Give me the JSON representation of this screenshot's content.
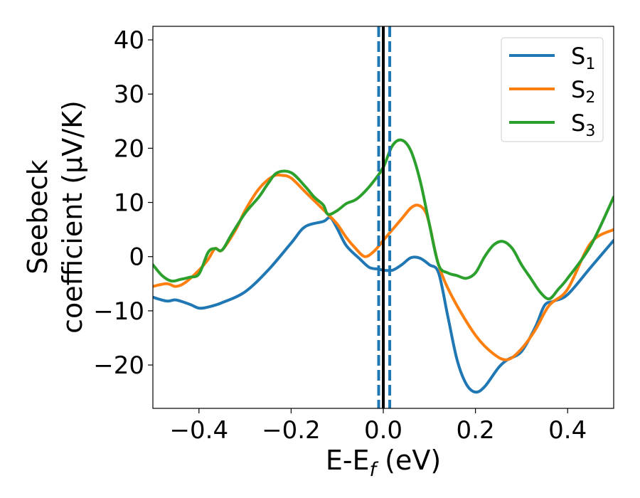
{
  "chart_data": {
    "type": "line",
    "xlabel": {
      "main": "E-E",
      "sub": "f",
      "tail": " (eV)"
    },
    "ylabel": {
      "line1": "Seebeck",
      "line2": "coefficient  (μV/K)"
    },
    "xlim": [
      -0.5,
      0.5
    ],
    "ylim": [
      -28,
      42.5
    ],
    "xticks": [
      -0.4,
      -0.2,
      0.0,
      0.2,
      0.4
    ],
    "xtick_labels": [
      "−0.4",
      "−0.2",
      "0.0",
      "0.2",
      "0.4"
    ],
    "yticks": [
      -20,
      -10,
      0,
      10,
      20,
      30,
      40
    ],
    "ytick_labels": [
      "−20",
      "−10",
      "0",
      "10",
      "20",
      "30",
      "40"
    ],
    "grid": false,
    "legend_position": "top-right",
    "reference_lines": [
      {
        "x": 0.0,
        "style": "solid",
        "color": "#000000"
      },
      {
        "x": -0.01,
        "style": "dashed",
        "color": "#1f77b4"
      },
      {
        "x": 0.014,
        "style": "dashed",
        "color": "#1f77b4"
      }
    ],
    "series": [
      {
        "name": "S",
        "sub": "1",
        "color": "#1f77b4",
        "x": [
          -0.5,
          -0.47,
          -0.45,
          -0.42,
          -0.4,
          -0.38,
          -0.35,
          -0.3,
          -0.25,
          -0.2,
          -0.17,
          -0.13,
          -0.115,
          -0.1,
          -0.08,
          -0.05,
          -0.03,
          -0.01,
          0.0,
          0.02,
          0.04,
          0.06,
          0.08,
          0.1,
          0.12,
          0.14,
          0.16,
          0.18,
          0.2,
          0.22,
          0.25,
          0.27,
          0.3,
          0.33,
          0.35,
          0.37,
          0.4,
          0.45,
          0.5
        ],
        "y": [
          -7.5,
          -8.2,
          -8.0,
          -8.8,
          -9.5,
          -9.3,
          -8.5,
          -6.5,
          -2.5,
          2.5,
          5.5,
          6.5,
          7.2,
          5.2,
          2.0,
          -0.5,
          -2.0,
          -2.3,
          -2.5,
          -2.5,
          -1.5,
          -0.2,
          -0.3,
          -1.5,
          -3.0,
          -11.0,
          -19.0,
          -23.5,
          -25.0,
          -24.0,
          -20.5,
          -19.0,
          -17.5,
          -13.0,
          -9.0,
          -8.2,
          -7.0,
          -2.0,
          3.0
        ]
      },
      {
        "name": "S",
        "sub": "2",
        "color": "#ff7f0e",
        "x": [
          -0.5,
          -0.47,
          -0.45,
          -0.43,
          -0.4,
          -0.38,
          -0.365,
          -0.35,
          -0.32,
          -0.3,
          -0.27,
          -0.24,
          -0.22,
          -0.2,
          -0.17,
          -0.14,
          -0.12,
          -0.1,
          -0.08,
          -0.06,
          -0.04,
          -0.02,
          0.0,
          0.02,
          0.04,
          0.06,
          0.075,
          0.09,
          0.1,
          0.12,
          0.15,
          0.2,
          0.24,
          0.27,
          0.3,
          0.33,
          0.36,
          0.4,
          0.45,
          0.5
        ],
        "y": [
          -5.5,
          -5.0,
          -5.5,
          -4.8,
          -2.5,
          -0.5,
          1.5,
          1.2,
          5.0,
          8.5,
          12.5,
          14.8,
          15.0,
          14.5,
          12.0,
          9.5,
          7.8,
          6.0,
          3.5,
          1.5,
          0.0,
          1.0,
          3.0,
          5.0,
          7.0,
          9.0,
          9.5,
          8.5,
          6.0,
          -1.5,
          -7.5,
          -14.5,
          -18.0,
          -19.0,
          -17.0,
          -13.5,
          -9.0,
          -6.0,
          2.5,
          5.0
        ]
      },
      {
        "name": "S",
        "sub": "3",
        "color": "#2ca02c",
        "x": [
          -0.5,
          -0.48,
          -0.46,
          -0.44,
          -0.42,
          -0.4,
          -0.38,
          -0.365,
          -0.35,
          -0.33,
          -0.3,
          -0.27,
          -0.25,
          -0.23,
          -0.2,
          -0.17,
          -0.15,
          -0.13,
          -0.12,
          -0.1,
          -0.08,
          -0.06,
          -0.04,
          -0.02,
          0.0,
          0.02,
          0.04,
          0.06,
          0.08,
          0.1,
          0.12,
          0.14,
          0.16,
          0.18,
          0.2,
          0.22,
          0.24,
          0.26,
          0.28,
          0.3,
          0.32,
          0.34,
          0.36,
          0.38,
          0.4,
          0.45,
          0.5
        ],
        "y": [
          -1.5,
          -3.5,
          -4.5,
          -4.2,
          -3.8,
          -3.2,
          0.8,
          1.5,
          1.2,
          4.0,
          8.0,
          11.0,
          13.5,
          15.5,
          15.5,
          13.0,
          11.0,
          9.5,
          7.8,
          8.5,
          9.8,
          10.5,
          12.0,
          14.0,
          16.5,
          20.5,
          21.5,
          19.5,
          14.0,
          6.0,
          -1.5,
          -3.0,
          -3.5,
          -4.0,
          -3.0,
          0.0,
          2.2,
          2.8,
          1.5,
          -1.5,
          -4.0,
          -6.5,
          -7.8,
          -6.0,
          -4.0,
          2.0,
          11.0
        ]
      }
    ]
  }
}
